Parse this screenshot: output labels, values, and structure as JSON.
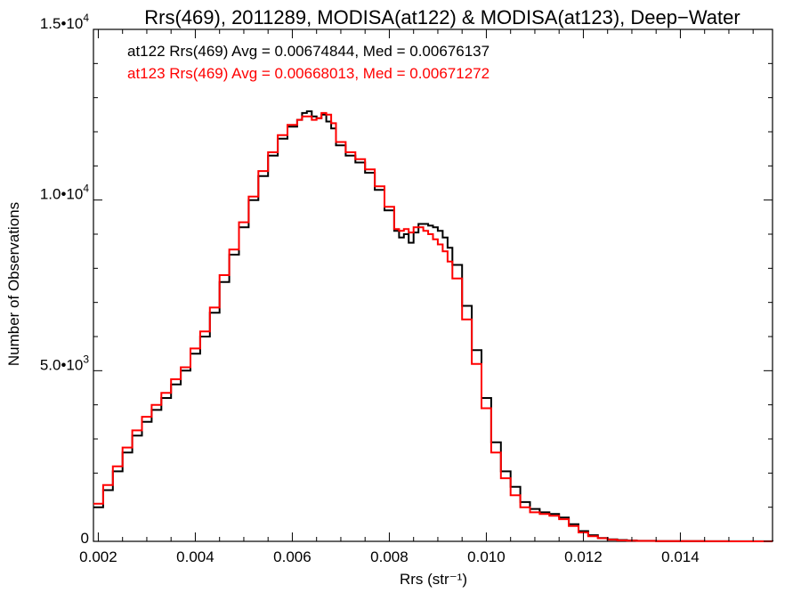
{
  "chart_data": {
    "type": "line",
    "title": "Rrs(469), 2011289, MODISA(at122) & MODISA(at123), Deep−Water",
    "xlabel": "Rrs (str⁻¹)",
    "ylabel": "Number of Observations",
    "xlim": [
      0.0019,
      0.0159
    ],
    "ylim": [
      0,
      15000
    ],
    "x_ticks": [
      0.002,
      0.004,
      0.006,
      0.008,
      0.01,
      0.012,
      0.014
    ],
    "x_tick_labels": [
      "0.002",
      "0.004",
      "0.006",
      "0.008",
      "0.010",
      "0.012",
      "0.014"
    ],
    "y_ticks": [
      {
        "value": 0,
        "mantissa": "0",
        "exponent": ""
      },
      {
        "value": 5000,
        "mantissa": "5.0•10",
        "exponent": "3"
      },
      {
        "value": 10000,
        "mantissa": "1.0•10",
        "exponent": "4"
      },
      {
        "value": 15000,
        "mantissa": "1.5•10",
        "exponent": "4"
      }
    ],
    "grid": false,
    "legend_position": "top-left",
    "series": [
      {
        "name": "at122 Rrs(469) Avg = 0.00674844, Med = 0.00676137",
        "color": "#000000",
        "x": [
          0.0019,
          0.0021,
          0.0023,
          0.0025,
          0.0027,
          0.0029,
          0.0031,
          0.0033,
          0.0035,
          0.0037,
          0.0039,
          0.0041,
          0.0043,
          0.0045,
          0.0047,
          0.0049,
          0.0051,
          0.0053,
          0.0055,
          0.0057,
          0.0059,
          0.0061,
          0.0062,
          0.0063,
          0.0064,
          0.0065,
          0.0066,
          0.0067,
          0.0068,
          0.0069,
          0.0071,
          0.0073,
          0.0075,
          0.0077,
          0.0079,
          0.0081,
          0.0082,
          0.0083,
          0.0084,
          0.0085,
          0.0086,
          0.0087,
          0.0088,
          0.0089,
          0.009,
          0.0091,
          0.0092,
          0.0093,
          0.0095,
          0.0097,
          0.0099,
          0.0101,
          0.0103,
          0.0105,
          0.0107,
          0.0109,
          0.0111,
          0.0113,
          0.0115,
          0.0117,
          0.0119,
          0.0121,
          0.0123,
          0.0125,
          0.0127,
          0.0129,
          0.0131,
          0.0135,
          0.014,
          0.0145,
          0.015,
          0.0159
        ],
        "y": [
          1000,
          1500,
          2050,
          2600,
          3100,
          3500,
          3850,
          4200,
          4600,
          5000,
          5500,
          6000,
          6700,
          7600,
          8400,
          9200,
          10000,
          10700,
          11300,
          11800,
          12150,
          12350,
          12550,
          12600,
          12450,
          12400,
          12500,
          12300,
          12100,
          11600,
          11300,
          11100,
          10800,
          10300,
          9700,
          9100,
          8900,
          9000,
          8750,
          9050,
          9300,
          9300,
          9250,
          9200,
          9100,
          8900,
          8600,
          8100,
          6900,
          5600,
          4200,
          2900,
          2050,
          1600,
          1150,
          950,
          850,
          800,
          700,
          500,
          300,
          180,
          100,
          60,
          40,
          25,
          15,
          8,
          5,
          3,
          2,
          0
        ]
      },
      {
        "name": "at123 Rrs(469) Avg = 0.00668013, Med = 0.00671272",
        "color": "#ff0000",
        "x": [
          0.0019,
          0.0021,
          0.0023,
          0.0025,
          0.0027,
          0.0029,
          0.0031,
          0.0033,
          0.0035,
          0.0037,
          0.0039,
          0.0041,
          0.0043,
          0.0045,
          0.0047,
          0.0049,
          0.0051,
          0.0053,
          0.0055,
          0.0057,
          0.0059,
          0.0061,
          0.0062,
          0.0063,
          0.0064,
          0.0065,
          0.0066,
          0.0067,
          0.0068,
          0.0069,
          0.0071,
          0.0073,
          0.0075,
          0.0077,
          0.0079,
          0.0081,
          0.0082,
          0.0083,
          0.0084,
          0.0085,
          0.0086,
          0.0087,
          0.0088,
          0.0089,
          0.009,
          0.0091,
          0.0092,
          0.0093,
          0.0095,
          0.0097,
          0.0099,
          0.0101,
          0.0103,
          0.0105,
          0.0107,
          0.0109,
          0.0111,
          0.0113,
          0.0115,
          0.0117,
          0.0119,
          0.0121,
          0.0123,
          0.0125,
          0.0127,
          0.0129,
          0.0131,
          0.0135,
          0.014,
          0.0145,
          0.015,
          0.0159
        ],
        "y": [
          1100,
          1650,
          2200,
          2750,
          3250,
          3650,
          4000,
          4350,
          4750,
          5100,
          5650,
          6150,
          6850,
          7800,
          8550,
          9350,
          10100,
          10850,
          11400,
          11900,
          12200,
          12350,
          12450,
          12450,
          12350,
          12400,
          12550,
          12500,
          12250,
          11700,
          11400,
          11200,
          10900,
          10400,
          9800,
          9150,
          9100,
          9150,
          9050,
          9200,
          9200,
          9100,
          9000,
          8850,
          8700,
          8500,
          8200,
          7700,
          6500,
          5200,
          3900,
          2600,
          1850,
          1350,
          1000,
          850,
          800,
          750,
          650,
          450,
          260,
          150,
          90,
          50,
          30,
          20,
          12,
          6,
          4,
          2,
          1,
          0
        ]
      }
    ]
  }
}
